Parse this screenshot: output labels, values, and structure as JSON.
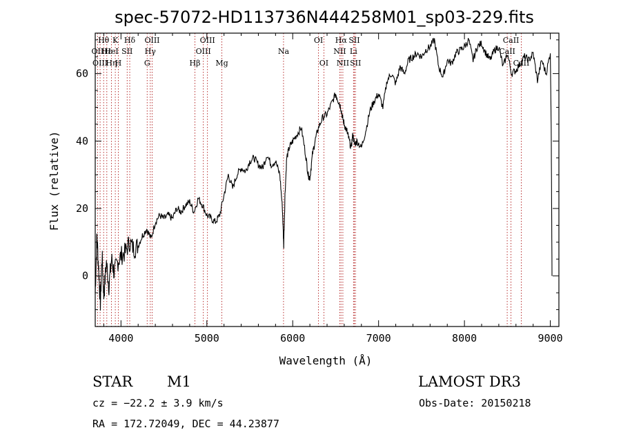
{
  "chart_data": {
    "type": "line",
    "title": "spec-57072-HD113736N444258M01_sp03-229.fits",
    "xlabel": "Wavelength (Å)",
    "ylabel": "Flux (relative)",
    "xlim": [
      3700,
      9100
    ],
    "ylim": [
      -15,
      72
    ],
    "xticks": [
      4000,
      5000,
      6000,
      7000,
      8000,
      9000
    ],
    "xtick_labels": [
      "4000",
      "5000",
      "6000",
      "7000",
      "8000",
      "9000"
    ],
    "yticks": [
      0,
      20,
      40,
      60
    ],
    "ytick_labels": [
      "0",
      "20",
      "40",
      "60"
    ],
    "spectrum": {
      "name": "flux",
      "x": [
        3700,
        3720,
        3740,
        3760,
        3780,
        3800,
        3830,
        3860,
        3890,
        3920,
        3960,
        4000,
        4050,
        4100,
        4150,
        4200,
        4250,
        4300,
        4350,
        4400,
        4450,
        4500,
        4550,
        4600,
        4650,
        4700,
        4750,
        4800,
        4850,
        4900,
        4950,
        5000,
        5050,
        5100,
        5150,
        5200,
        5250,
        5300,
        5350,
        5400,
        5450,
        5500,
        5550,
        5600,
        5650,
        5700,
        5750,
        5800,
        5850,
        5880,
        5895,
        5910,
        5930,
        5960,
        6000,
        6050,
        6100,
        6150,
        6180,
        6200,
        6230,
        6260,
        6300,
        6350,
        6400,
        6450,
        6500,
        6530,
        6560,
        6580,
        6600,
        6630,
        6650,
        6680,
        6700,
        6720,
        6750,
        6800,
        6850,
        6900,
        6950,
        7000,
        7050,
        7100,
        7150,
        7200,
        7250,
        7300,
        7350,
        7400,
        7450,
        7500,
        7550,
        7600,
        7650,
        7700,
        7750,
        7800,
        7850,
        7900,
        7950,
        8000,
        8050,
        8100,
        8150,
        8200,
        8250,
        8300,
        8350,
        8400,
        8450,
        8500,
        8550,
        8600,
        8650,
        8700,
        8750,
        8800,
        8850,
        8900,
        8950,
        9000,
        9010,
        9020
      ],
      "y": [
        -5,
        12,
        2,
        -8,
        6,
        -6,
        4,
        -3,
        5,
        1,
        4,
        6,
        7,
        10,
        8,
        9,
        12,
        14,
        11,
        16,
        18,
        17,
        18,
        17,
        20,
        19,
        21,
        22,
        19,
        23,
        21,
        18,
        17,
        16,
        18,
        24,
        30,
        26,
        30,
        32,
        31,
        34,
        35,
        33,
        32,
        36,
        33,
        34,
        30,
        20,
        9,
        24,
        35,
        38,
        40,
        42,
        44,
        36,
        30,
        29,
        36,
        40,
        44,
        47,
        48,
        51,
        54,
        52,
        50,
        47,
        45,
        43,
        41,
        38,
        42,
        39,
        40,
        38,
        43,
        49,
        52,
        54,
        50,
        58,
        60,
        57,
        62,
        60,
        64,
        65,
        66,
        65,
        67,
        68,
        70,
        62,
        59,
        64,
        63,
        66,
        67,
        68,
        70,
        64,
        68,
        69,
        66,
        64,
        67,
        68,
        62,
        66,
        60,
        61,
        63,
        65,
        64,
        66,
        58,
        64,
        60,
        66,
        45,
        0
      ]
    },
    "line_markers": [
      {
        "label": "Hθ",
        "wave": 3798,
        "row": 1
      },
      {
        "label": "OII",
        "wave": 3727,
        "row": 2
      },
      {
        "label": "OIII",
        "wave": 3757,
        "row": 3
      },
      {
        "label": "Hε",
        "wave": 3835,
        "row": 2
      },
      {
        "label": "K",
        "wave": 3934,
        "row": 1
      },
      {
        "label": "Hη",
        "wave": 3889,
        "row": 3
      },
      {
        "label": "HeI",
        "wave": 3889,
        "row": 2
      },
      {
        "label": "H",
        "wave": 3969,
        "row": 3
      },
      {
        "label": "Hδ",
        "wave": 4102,
        "row": 1
      },
      {
        "label": "SII",
        "wave": 4072,
        "row": 2
      },
      {
        "label": "OIII",
        "wave": 4363,
        "row": 1
      },
      {
        "label": "Hγ",
        "wave": 4341,
        "row": 2
      },
      {
        "label": "G",
        "wave": 4305,
        "row": 3
      },
      {
        "label": "Hβ",
        "wave": 4861,
        "row": 3
      },
      {
        "label": "OIII",
        "wave": 5007,
        "row": 1
      },
      {
        "label": "OIII",
        "wave": 4959,
        "row": 2
      },
      {
        "label": "Mg",
        "wave": 5175,
        "row": 3
      },
      {
        "label": "Na",
        "wave": 5893,
        "row": 2
      },
      {
        "label": "OI",
        "wave": 6300,
        "row": 1
      },
      {
        "label": "OI",
        "wave": 6363,
        "row": 3
      },
      {
        "label": "Hα",
        "wave": 6563,
        "row": 1
      },
      {
        "label": "SII",
        "wave": 6717,
        "row": 1
      },
      {
        "label": "NII",
        "wave": 6548,
        "row": 2
      },
      {
        "label": "Li",
        "wave": 6708,
        "row": 2
      },
      {
        "label": "NII",
        "wave": 6584,
        "row": 3
      },
      {
        "label": "SII",
        "wave": 6731,
        "row": 3
      },
      {
        "label": "CaII",
        "wave": 8542,
        "row": 1
      },
      {
        "label": "CaII",
        "wave": 8498,
        "row": 2
      },
      {
        "label": "CaII",
        "wave": 8662,
        "row": 3
      }
    ],
    "marker_waves": [
      3727,
      3757,
      3798,
      3835,
      3889,
      3934,
      3969,
      4072,
      4102,
      4305,
      4341,
      4363,
      4861,
      4959,
      5007,
      5175,
      5893,
      6300,
      6363,
      6548,
      6563,
      6584,
      6708,
      6717,
      6731,
      8498,
      8542,
      8662
    ],
    "colors": {
      "spectrum": "#000000",
      "marker_line": "#b01818",
      "axes": "#000000"
    }
  },
  "footer": {
    "object_class": "STAR",
    "subclass": "M1",
    "survey": "LAMOST DR3",
    "redshift": "cz = −22.2 ± 3.9 km/s",
    "obs_date": "Obs-Date: 20150218",
    "coords": "RA = 172.72049, DEC =  44.23877"
  }
}
